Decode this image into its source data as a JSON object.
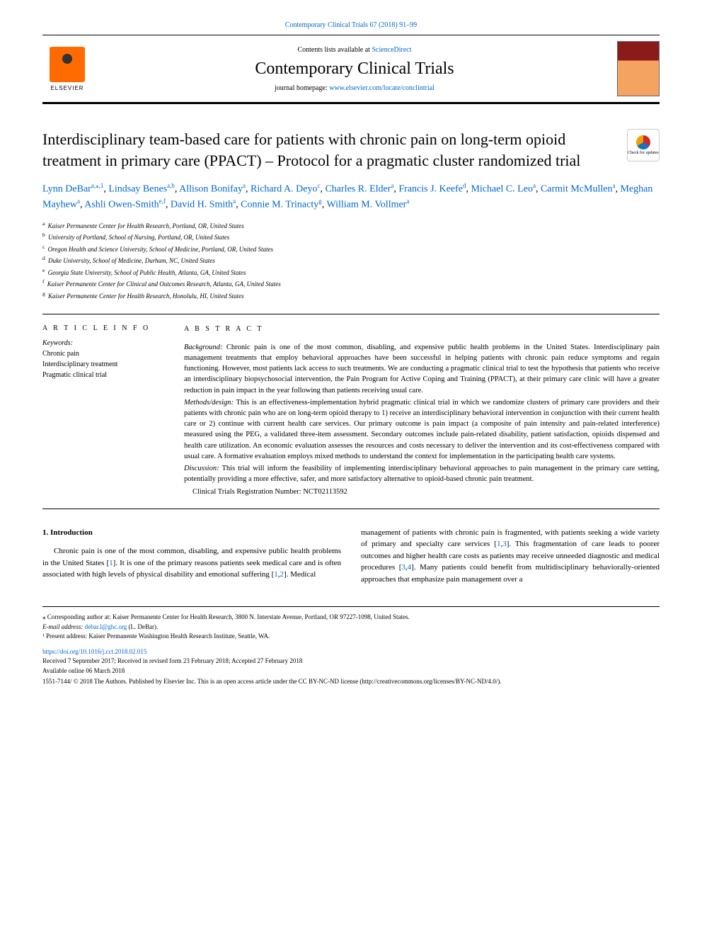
{
  "header": {
    "journal_ref": "Contemporary Clinical Trials 67 (2018) 91–99",
    "contents_label": "Contents lists available at ",
    "contents_service": "ScienceDirect",
    "journal_title": "Contemporary Clinical Trials",
    "homepage_label": "journal homepage: ",
    "homepage_url": "www.elsevier.com/locate/conclintrial",
    "publisher": "ELSEVIER"
  },
  "updates_badge": "Check for updates",
  "article": {
    "title": "Interdisciplinary team-based care for patients with chronic pain on long-term opioid treatment in primary care (PPACT) – Protocol for a pragmatic cluster randomized trial"
  },
  "authors": [
    {
      "name": "Lynn DeBar",
      "sup": "a,⁎,1"
    },
    {
      "name": "Lindsay Benes",
      "sup": "a,b"
    },
    {
      "name": "Allison Bonifay",
      "sup": "a"
    },
    {
      "name": "Richard A. Deyo",
      "sup": "c"
    },
    {
      "name": "Charles R. Elder",
      "sup": "a"
    },
    {
      "name": "Francis J. Keefe",
      "sup": "d"
    },
    {
      "name": "Michael C. Leo",
      "sup": "a"
    },
    {
      "name": "Carmit McMullen",
      "sup": "a"
    },
    {
      "name": "Meghan Mayhew",
      "sup": "a"
    },
    {
      "name": "Ashli Owen-Smith",
      "sup": "e,f"
    },
    {
      "name": "David H. Smith",
      "sup": "a"
    },
    {
      "name": "Connie M. Trinacty",
      "sup": "g"
    },
    {
      "name": "William M. Vollmer",
      "sup": "a"
    }
  ],
  "affiliations": [
    {
      "sup": "a",
      "text": "Kaiser Permanente Center for Health Research, Portland, OR, United States"
    },
    {
      "sup": "b",
      "text": "University of Portland, School of Nursing, Portland, OR, United States"
    },
    {
      "sup": "c",
      "text": "Oregon Health and Science University, School of Medicine, Portland, OR, United States"
    },
    {
      "sup": "d",
      "text": "Duke University, School of Medicine, Durham, NC, United States"
    },
    {
      "sup": "e",
      "text": "Georgia State University, School of Public Health, Atlanta, GA, United States"
    },
    {
      "sup": "f",
      "text": "Kaiser Permanente Center for Clinical and Outcomes Research, Atlanta, GA, United States"
    },
    {
      "sup": "g",
      "text": "Kaiser Permanente Center for Health Research, Honolulu, HI, United States"
    }
  ],
  "info": {
    "heading": "A R T I C L E  I N F O",
    "keywords_label": "Keywords:",
    "keywords": [
      "Chronic pain",
      "Interdisciplinary treatment",
      "Pragmatic clinical trial"
    ]
  },
  "abstract": {
    "heading": "A B S T R A C T",
    "background_label": "Background:",
    "background": "Chronic pain is one of the most common, disabling, and expensive public health problems in the United States. Interdisciplinary pain management treatments that employ behavioral approaches have been successful in helping patients with chronic pain reduce symptoms and regain functioning. However, most patients lack access to such treatments. We are conducting a pragmatic clinical trial to test the hypothesis that patients who receive an interdisciplinary biopsychosocial intervention, the Pain Program for Active Coping and Training (PPACT), at their primary care clinic will have a greater reduction in pain impact in the year following than patients receiving usual care.",
    "methods_label": "Methods/design:",
    "methods": "This is an effectiveness-implementation hybrid pragmatic clinical trial in which we randomize clusters of primary care providers and their patients with chronic pain who are on long-term opioid therapy to 1) receive an interdisciplinary behavioral intervention in conjunction with their current health care or 2) continue with current health care services. Our primary outcome is pain impact (a composite of pain intensity and pain-related interference) measured using the PEG, a validated three-item assessment. Secondary outcomes include pain-related disability, patient satisfaction, opioids dispensed and health care utilization. An economic evaluation assesses the resources and costs necessary to deliver the intervention and its cost-effectiveness compared with usual care. A formative evaluation employs mixed methods to understand the context for implementation in the participating health care systems.",
    "discussion_label": "Discussion:",
    "discussion": "This trial will inform the feasibility of implementing interdisciplinary behavioral approaches to pain management in the primary care setting, potentially providing a more effective, safer, and more satisfactory alternative to opioid-based chronic pain treatment.",
    "registration": "Clinical Trials Registration Number: NCT02113592"
  },
  "body": {
    "section_heading": "1. Introduction",
    "col1_p1": "Chronic pain is one of the most common, disabling, and expensive public health problems in the United States [1]. It is one of the primary reasons patients seek medical care and is often associated with high levels of physical disability and emotional suffering [1,2]. Medical",
    "col2_p1": "management of patients with chronic pain is fragmented, with patients seeking a wide variety of primary and specialty care services [1,3]. This fragmentation of care leads to poorer outcomes and higher health care costs as patients may receive unneeded diagnostic and medical procedures [3,4]. Many patients could benefit from multidisciplinary behaviorally-oriented approaches that emphasize pain management over a"
  },
  "footer": {
    "corresponding": "⁎ Corresponding author at: Kaiser Permanente Center for Health Research, 3800 N. Interstate Avenue, Portland, OR 97227-1098, United States.",
    "email_label": "E-mail address: ",
    "email": "debar.l@ghc.org",
    "email_person": " (L. DeBar).",
    "present_addr": "¹ Present address: Kaiser Permanente Washington Health Research Institute, Seattle, WA.",
    "doi": "https://doi.org/10.1016/j.cct.2018.02.015",
    "dates": "Received 7 September 2017; Received in revised form 23 February 2018; Accepted 27 February 2018",
    "available": "Available online 06 March 2018",
    "copyright": "1551-7144/ © 2018 The Authors. Published by Elsevier Inc. This is an open access article under the CC BY-NC-ND license (http://creativecommons.org/licenses/BY-NC-ND/4.0/)."
  },
  "colors": {
    "link": "#0066cc",
    "elsevier_orange": "#ff6b00",
    "cover_red": "#8b1a1a",
    "cover_tan": "#f4a460"
  }
}
